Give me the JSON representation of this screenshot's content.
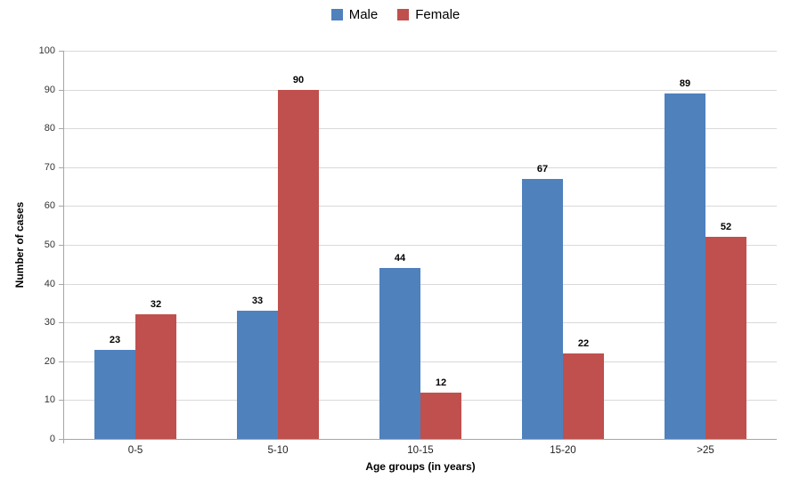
{
  "chart_data": {
    "type": "bar",
    "categories": [
      "0-5",
      "5-10",
      "10-15",
      "15-20",
      ">25"
    ],
    "series": [
      {
        "name": "Male",
        "color": "#4F81BD",
        "values": [
          23,
          33,
          44,
          67,
          89
        ]
      },
      {
        "name": "Female",
        "color": "#C0504D",
        "values": [
          32,
          90,
          12,
          22,
          52
        ]
      }
    ],
    "title": "",
    "xlabel": "Age groups (in years)",
    "ylabel": "Number of cases",
    "ylim": [
      0,
      100
    ],
    "ytick_step": 10,
    "grid": "horizontal",
    "legend_position": "top-center",
    "data_labels": true
  },
  "colors": {
    "background": "#FFFFFF",
    "gridline": "#D9D9D9",
    "axis_line": "#A6A6A6",
    "tick_label": "#333333",
    "data_label": "#000000"
  }
}
